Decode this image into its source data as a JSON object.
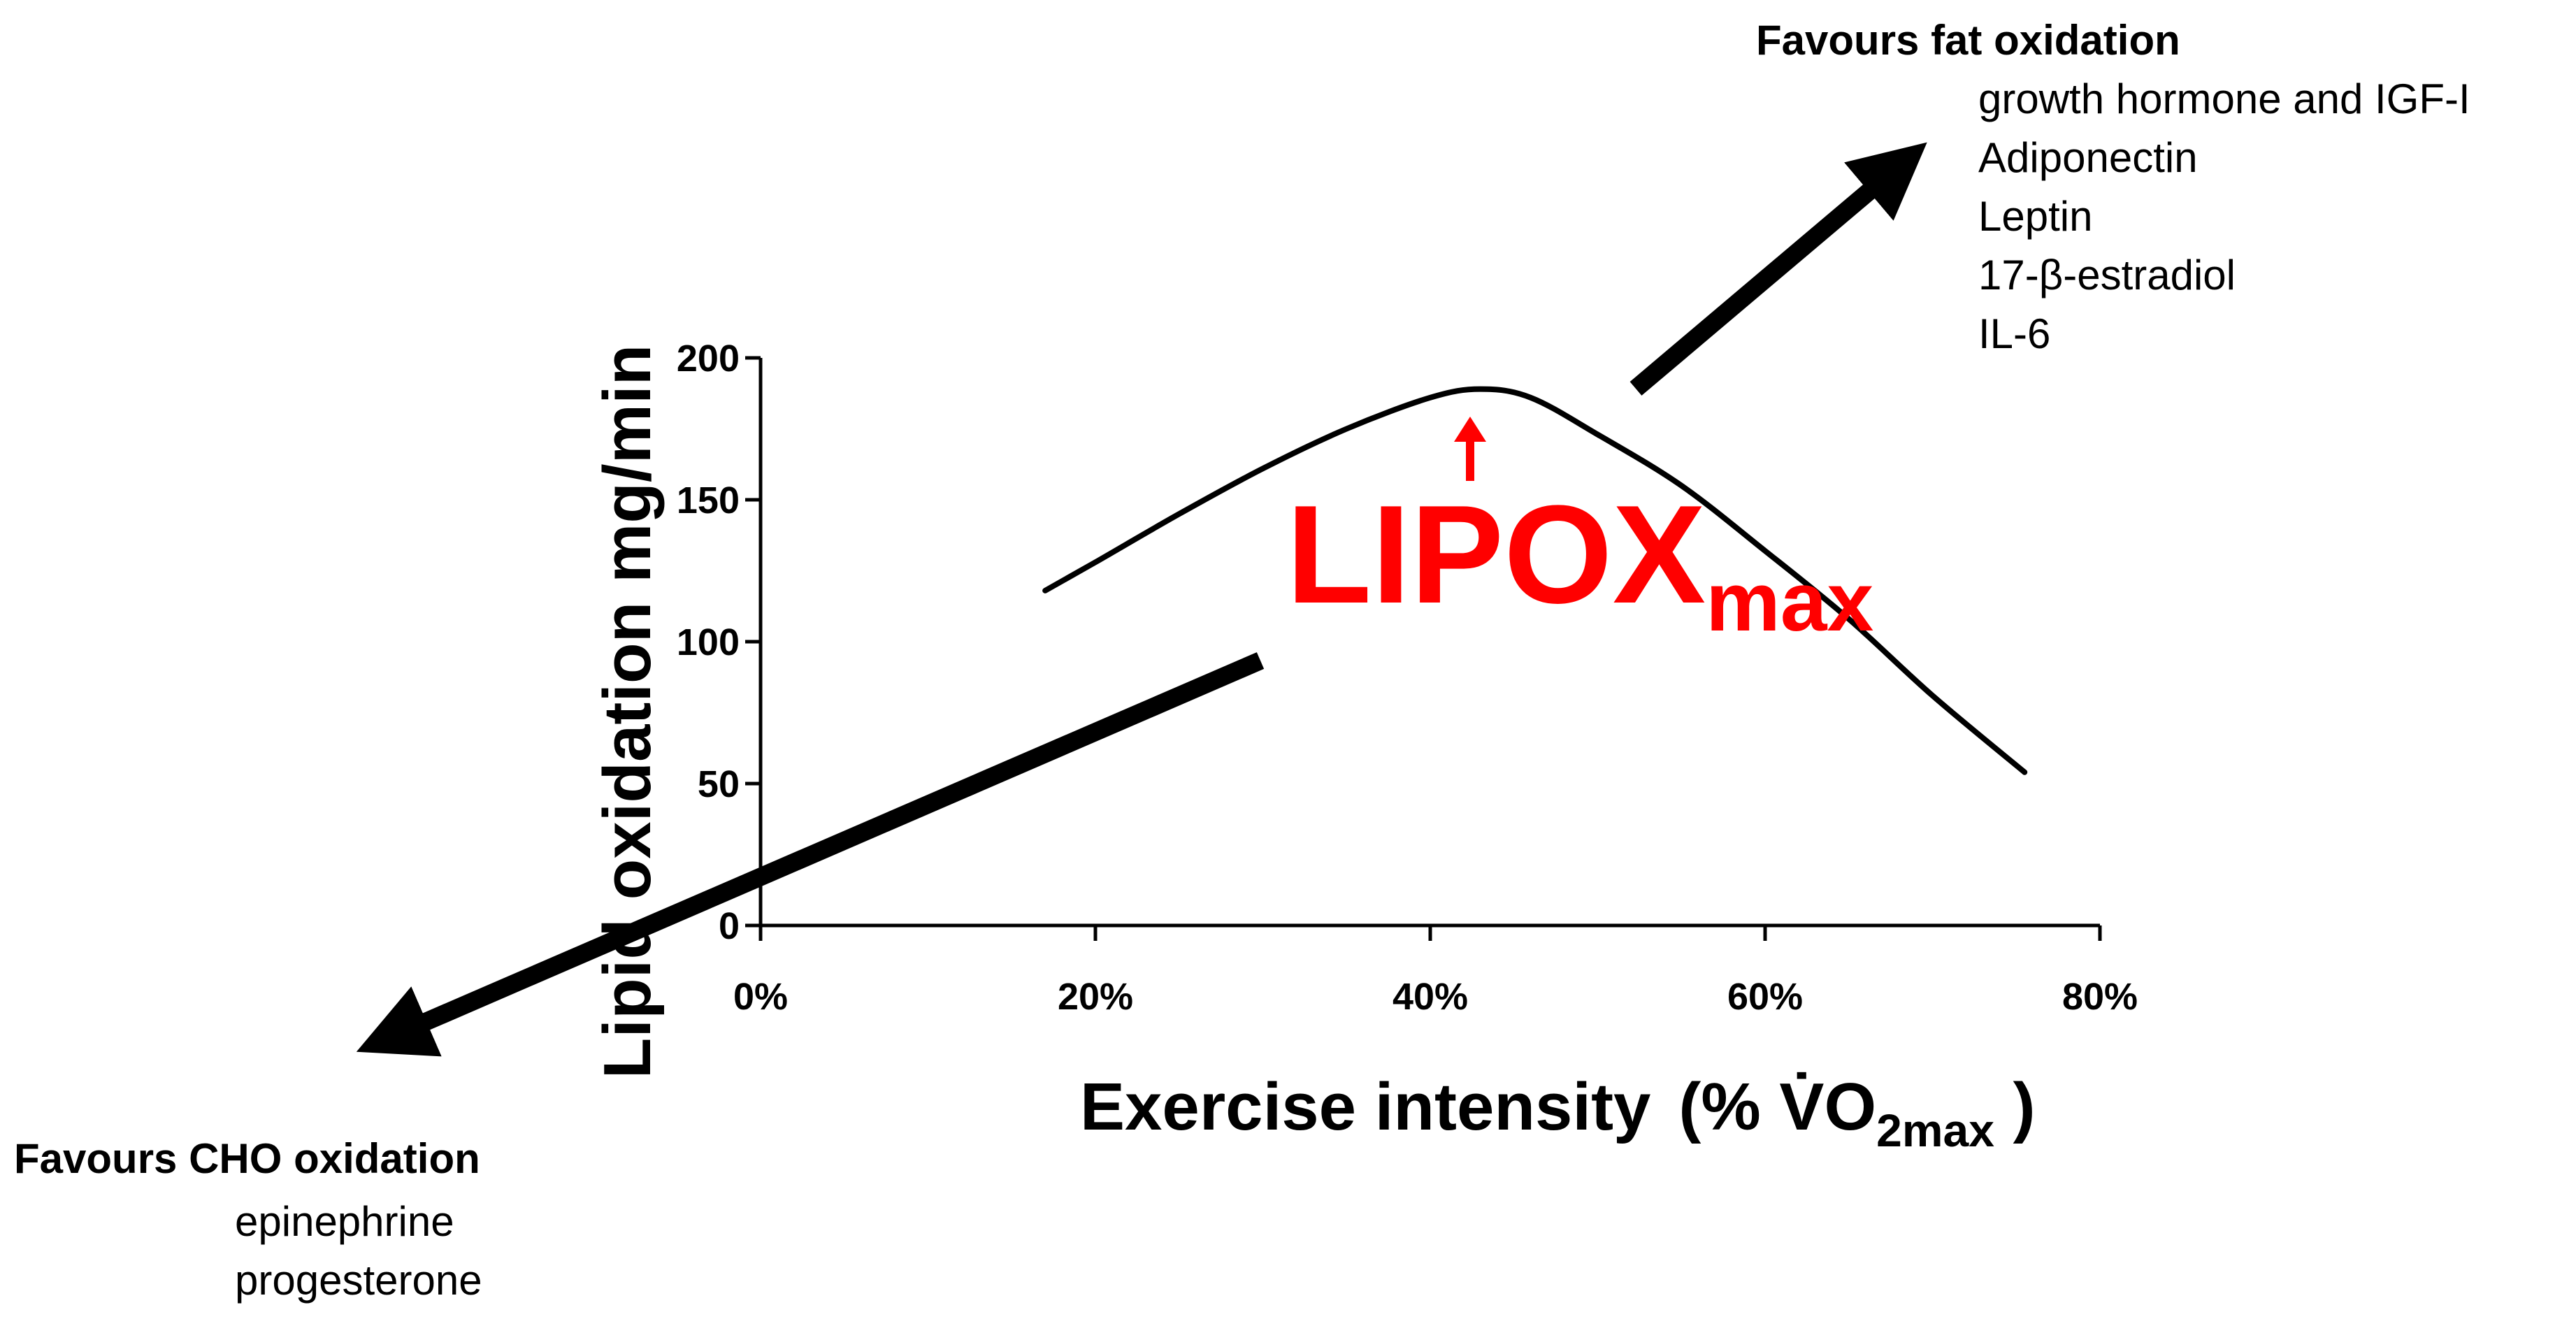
{
  "chart_data": {
    "type": "line",
    "title": "",
    "xlabel": "Exercise intensity (% V̇O2max)",
    "xlabel_parts": {
      "main": "Exercise intensity",
      "open": "(% ",
      "v": "V̇O",
      "sub": "2max",
      "close": " )"
    },
    "ylabel": "Lipid oxidation mg/min",
    "x_unit": "%",
    "xlim": [
      0,
      80
    ],
    "ylim": [
      0,
      200
    ],
    "x_ticks": [
      0,
      20,
      40,
      60,
      80
    ],
    "x_tick_labels": [
      "0%",
      "20%",
      "40%",
      "60%",
      "80%"
    ],
    "y_ticks": [
      0,
      50,
      100,
      150,
      200
    ],
    "y_tick_labels": [
      "0",
      "50",
      "100",
      "150",
      "200"
    ],
    "grid": false,
    "series": [
      {
        "name": "Lipid oxidation",
        "color": "#000000",
        "x": [
          17,
          20,
          25,
          30,
          35,
          40,
          43,
          46,
          50,
          55,
          60,
          65,
          70,
          75.5
        ],
        "y": [
          118,
          128,
          145,
          161,
          175,
          186,
          189,
          186,
          173,
          155,
          132,
          108,
          81,
          54
        ]
      }
    ],
    "annotations": {
      "lipox": {
        "main": "LIPOX",
        "sub": "max",
        "color": "#ff0000",
        "x": 42.5,
        "y": 175
      },
      "fat": {
        "heading": "Favours fat oxidation",
        "items": [
          "growth hormone and IGF-I",
          "Adiponectin",
          "Leptin",
          "17-β-estradiol",
          "IL-6"
        ]
      },
      "cho": {
        "heading": "Favours CHO oxidation",
        "items": [
          "epinephrine",
          "progesterone"
        ]
      }
    }
  }
}
